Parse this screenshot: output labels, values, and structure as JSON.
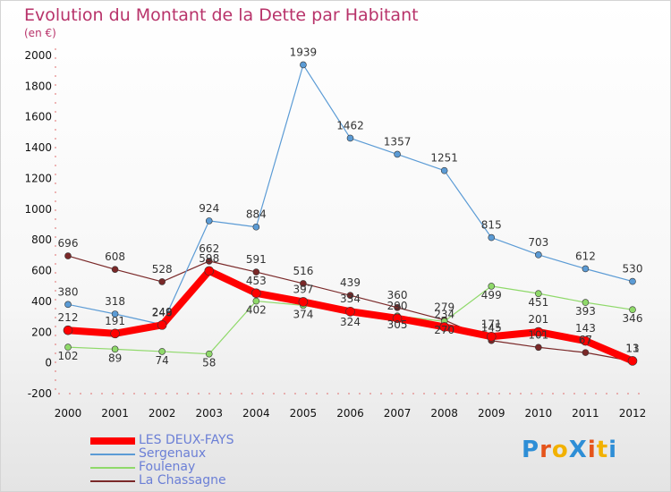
{
  "title": "Evolution du Montant de la Dette par Habitant",
  "subtitle": "(en €)",
  "brand": "ProXiti",
  "chart_data": {
    "type": "line",
    "x": [
      2000,
      2001,
      2002,
      2003,
      2004,
      2005,
      2006,
      2007,
      2008,
      2009,
      2010,
      2011,
      2012
    ],
    "ylim": [
      -200,
      2000
    ],
    "yticks": [
      -200,
      0,
      200,
      400,
      600,
      800,
      1000,
      1200,
      1400,
      1600,
      1800,
      2000
    ],
    "grid": false,
    "legend_position": "bottom-left",
    "series": [
      {
        "name": "LES DEUX-FAYS",
        "color": "#ff0000",
        "values": [
          212,
          191,
          246,
          598,
          453,
          397,
          334,
          290,
          234,
          171,
          201,
          143,
          13
        ]
      },
      {
        "name": "Sergenaux",
        "color": "#5b9bd5",
        "values": [
          380,
          318,
          249,
          924,
          884,
          1939,
          1462,
          1357,
          1251,
          815,
          703,
          612,
          530
        ]
      },
      {
        "name": "Foulenay",
        "color": "#8fd96a",
        "values": [
          102,
          89,
          74,
          58,
          402,
          374,
          324,
          305,
          270,
          499,
          451,
          393,
          346
        ]
      },
      {
        "name": "La Chassagne",
        "color": "#7a2828",
        "values": [
          696,
          608,
          528,
          662,
          591,
          516,
          439,
          360,
          279,
          145,
          101,
          67,
          11
        ]
      }
    ]
  }
}
